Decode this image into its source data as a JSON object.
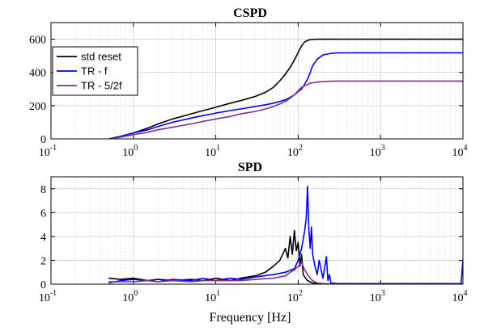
{
  "chart_data": [
    {
      "type": "line",
      "title": "CSPD",
      "xlabel": "",
      "ylabel": "",
      "xscale": "log",
      "xlim": [
        0.1,
        10000
      ],
      "ylim": [
        0,
        700
      ],
      "xticks": [
        "10^-1",
        "10^0",
        "10^1",
        "10^2",
        "10^3",
        "10^4"
      ],
      "yticks": [
        0,
        200,
        400,
        600
      ],
      "grid": true,
      "legend": "top-left",
      "series": [
        {
          "name": "std reset",
          "color": "#000000",
          "x": [
            0.5,
            0.7,
            1,
            1.5,
            2,
            3,
            5,
            7,
            10,
            15,
            20,
            30,
            40,
            50,
            60,
            70,
            80,
            90,
            100,
            110,
            120,
            140,
            170,
            200,
            300,
            500,
            1000,
            10000
          ],
          "y": [
            0,
            15,
            35,
            65,
            90,
            120,
            150,
            170,
            190,
            215,
            230,
            255,
            280,
            310,
            350,
            390,
            430,
            475,
            520,
            560,
            585,
            598,
            600,
            600,
            600,
            600,
            600,
            600
          ]
        },
        {
          "name": "TR - f",
          "color": "#0000ff",
          "x": [
            0.5,
            0.7,
            1,
            1.5,
            2,
            3,
            5,
            7,
            10,
            15,
            20,
            30,
            40,
            50,
            60,
            70,
            80,
            90,
            100,
            110,
            120,
            130,
            140,
            150,
            170,
            200,
            250,
            300,
            500,
            1000,
            10000
          ],
          "y": [
            0,
            15,
            35,
            55,
            75,
            100,
            125,
            140,
            155,
            170,
            180,
            195,
            205,
            215,
            225,
            235,
            250,
            265,
            285,
            300,
            330,
            360,
            400,
            440,
            480,
            505,
            515,
            517,
            518,
            518,
            518
          ]
        },
        {
          "name": "TR - 5/2f",
          "color": "#7e2f8e",
          "x": [
            0.5,
            0.7,
            1,
            1.5,
            2,
            3,
            5,
            7,
            10,
            15,
            20,
            30,
            40,
            50,
            60,
            70,
            80,
            90,
            100,
            110,
            120,
            140,
            170,
            200,
            250,
            300,
            500,
            1000,
            10000
          ],
          "y": [
            0,
            10,
            25,
            40,
            55,
            70,
            90,
            105,
            120,
            135,
            150,
            165,
            180,
            195,
            210,
            225,
            245,
            265,
            290,
            310,
            320,
            335,
            342,
            345,
            347,
            348,
            348,
            348,
            348
          ]
        }
      ]
    },
    {
      "type": "line",
      "title": "SPD",
      "xlabel": "Frequency [Hz]",
      "ylabel": "",
      "xscale": "log",
      "xlim": [
        0.1,
        10000
      ],
      "ylim": [
        0,
        9
      ],
      "xticks": [
        "10^-1",
        "10^0",
        "10^1",
        "10^2",
        "10^3",
        "10^4"
      ],
      "yticks": [
        0,
        2,
        4,
        6,
        8
      ],
      "grid": true,
      "series": [
        {
          "name": "std reset",
          "color": "#000000",
          "x": [
            0.5,
            0.7,
            1,
            1.5,
            2,
            3,
            5,
            7,
            10,
            15,
            20,
            30,
            40,
            50,
            60,
            70,
            75,
            80,
            85,
            90,
            95,
            100,
            105,
            110,
            115,
            120,
            130,
            150,
            200,
            10000
          ],
          "y": [
            0.5,
            0.4,
            0.5,
            0.3,
            0.4,
            0.3,
            0.4,
            0.3,
            0.5,
            0.3,
            0.5,
            0.7,
            1.0,
            1.5,
            2.0,
            3.0,
            2.2,
            4.0,
            2.5,
            4.5,
            2.8,
            3.5,
            1.5,
            2.5,
            0.8,
            0.6,
            0.3,
            0.1,
            0.0,
            0.0
          ]
        },
        {
          "name": "TR - f",
          "color": "#0000ff",
          "x": [
            0.5,
            0.7,
            1,
            1.5,
            2,
            3,
            5,
            7,
            10,
            15,
            20,
            30,
            50,
            70,
            90,
            100,
            110,
            120,
            125,
            130,
            135,
            140,
            145,
            150,
            160,
            170,
            180,
            200,
            220,
            230,
            240,
            250,
            300,
            500,
            1000,
            9500,
            10000
          ],
          "y": [
            0.1,
            0.3,
            0.4,
            0.3,
            0.2,
            0.4,
            0.3,
            0.5,
            0.3,
            0.5,
            0.4,
            0.6,
            0.8,
            1.0,
            1.3,
            2.0,
            3.0,
            4.5,
            5.5,
            8.2,
            4.5,
            3.0,
            4.8,
            2.5,
            1.5,
            0.8,
            2.0,
            0.5,
            2.3,
            0.3,
            0.8,
            0.1,
            0.05,
            0.05,
            0.05,
            0.05,
            2.0
          ]
        },
        {
          "name": "TR - 5/2f",
          "color": "#7e2f8e",
          "x": [
            0.5,
            0.7,
            1,
            1.5,
            2,
            3,
            5,
            7,
            10,
            15,
            20,
            30,
            50,
            70,
            80,
            90,
            100,
            110,
            120,
            130,
            140,
            150,
            170,
            200,
            300,
            1000,
            10000
          ],
          "y": [
            0.2,
            0.2,
            0.2,
            0.3,
            0.2,
            0.3,
            0.2,
            0.3,
            0.3,
            0.3,
            0.3,
            0.4,
            0.5,
            0.7,
            1.0,
            1.2,
            1.5,
            1.8,
            1.2,
            0.8,
            0.5,
            0.3,
            0.1,
            0.05,
            0.0,
            0.0,
            0.0
          ]
        }
      ]
    }
  ]
}
